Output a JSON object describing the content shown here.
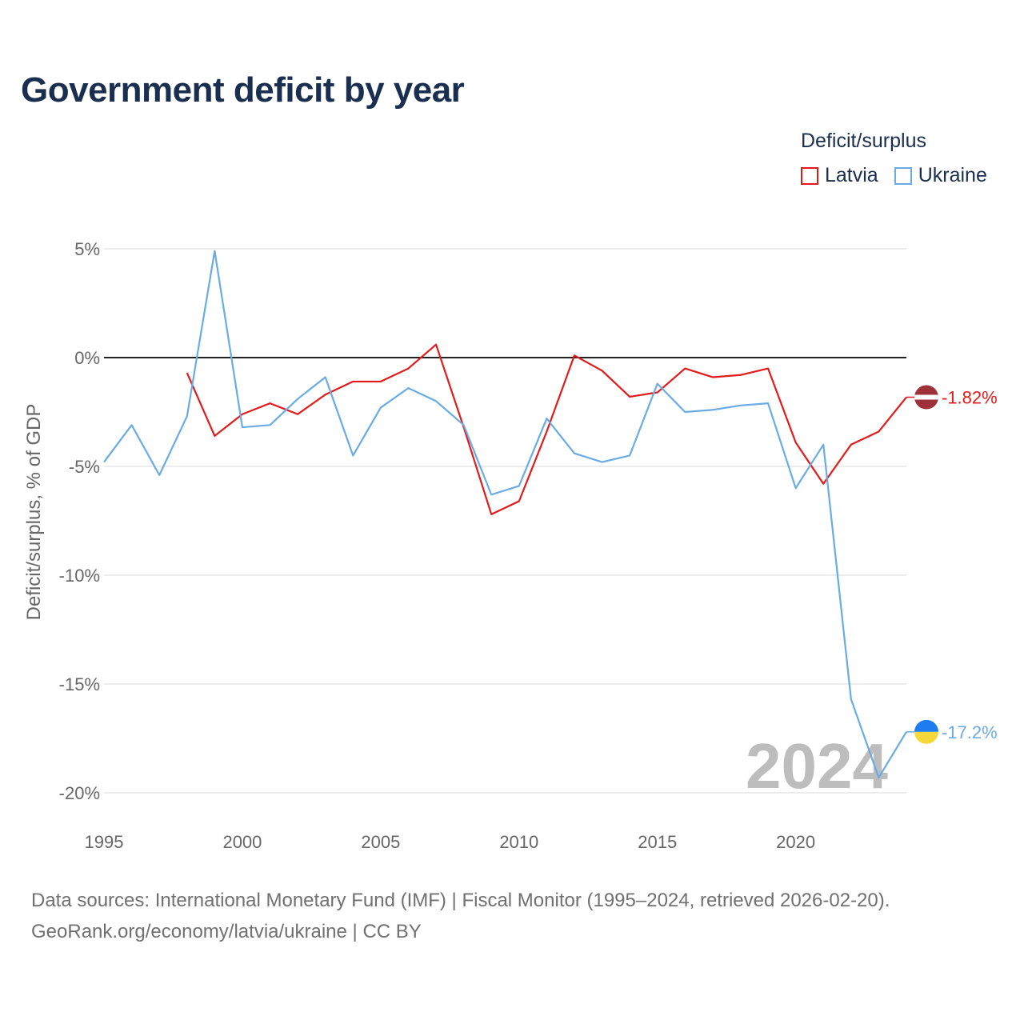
{
  "title": "Government deficit by year",
  "legend": {
    "title": "Deficit/surplus",
    "items": [
      {
        "name": "Latvia",
        "color": "#e31a1c"
      },
      {
        "name": "Ukraine",
        "color": "#6aabe3"
      }
    ]
  },
  "footer": {
    "line1": "Data sources: International Monetary Fund (IMF) | Fiscal Monitor (1995–2024, retrieved 2026-02-20).",
    "line2": "GeoRank.org/economy/latvia/ukraine | CC BY"
  },
  "chart_data": {
    "type": "line",
    "title": "Government deficit by year",
    "xlabel": "",
    "ylabel": "Deficit/surplus, % of GDP",
    "xlim": [
      1995,
      2024
    ],
    "ylim": [
      -20,
      5
    ],
    "x_ticks": [
      1995,
      2000,
      2005,
      2010,
      2015,
      2020
    ],
    "y_ticks": [
      {
        "value": 5,
        "label": "5%"
      },
      {
        "value": 0,
        "label": "0%"
      },
      {
        "value": -5,
        "label": "-5%"
      },
      {
        "value": -10,
        "label": "-10%"
      },
      {
        "value": -15,
        "label": "-15%"
      },
      {
        "value": -20,
        "label": "-20%"
      }
    ],
    "zero_line": true,
    "year_watermark": "2024",
    "series": [
      {
        "name": "Latvia",
        "color": "#e31a1c",
        "end_label": "-1.82%",
        "flag": "latvia",
        "x": [
          1998,
          1999,
          2000,
          2001,
          2002,
          2003,
          2004,
          2005,
          2006,
          2007,
          2008,
          2009,
          2010,
          2011,
          2012,
          2013,
          2014,
          2015,
          2016,
          2017,
          2018,
          2019,
          2020,
          2021,
          2022,
          2023,
          2024
        ],
        "values": [
          -0.7,
          -3.6,
          -2.6,
          -2.1,
          -2.6,
          -1.7,
          -1.1,
          -1.1,
          -0.5,
          0.6,
          -3.2,
          -7.2,
          -6.6,
          -3.4,
          0.1,
          -0.6,
          -1.8,
          -1.6,
          -0.5,
          -0.9,
          -0.8,
          -0.5,
          -3.9,
          -5.8,
          -4.0,
          -3.4,
          -1.82
        ]
      },
      {
        "name": "Ukraine",
        "color": "#6aabe3",
        "end_label": "-17.2%",
        "flag": "ukraine",
        "x": [
          1995,
          1996,
          1997,
          1998,
          1999,
          2000,
          2001,
          2002,
          2003,
          2004,
          2005,
          2006,
          2007,
          2008,
          2009,
          2010,
          2011,
          2012,
          2013,
          2014,
          2015,
          2016,
          2017,
          2018,
          2019,
          2020,
          2021,
          2022,
          2023,
          2024
        ],
        "values": [
          -4.8,
          -3.1,
          -5.4,
          -2.7,
          4.9,
          -3.2,
          -3.1,
          -1.9,
          -0.9,
          -4.5,
          -2.3,
          -1.4,
          -2.0,
          -3.1,
          -6.3,
          -5.9,
          -2.8,
          -4.4,
          -4.8,
          -4.5,
          -1.2,
          -2.5,
          -2.4,
          -2.2,
          -2.1,
          -6.0,
          -4.0,
          -15.7,
          -19.3,
          -17.2
        ]
      }
    ]
  }
}
